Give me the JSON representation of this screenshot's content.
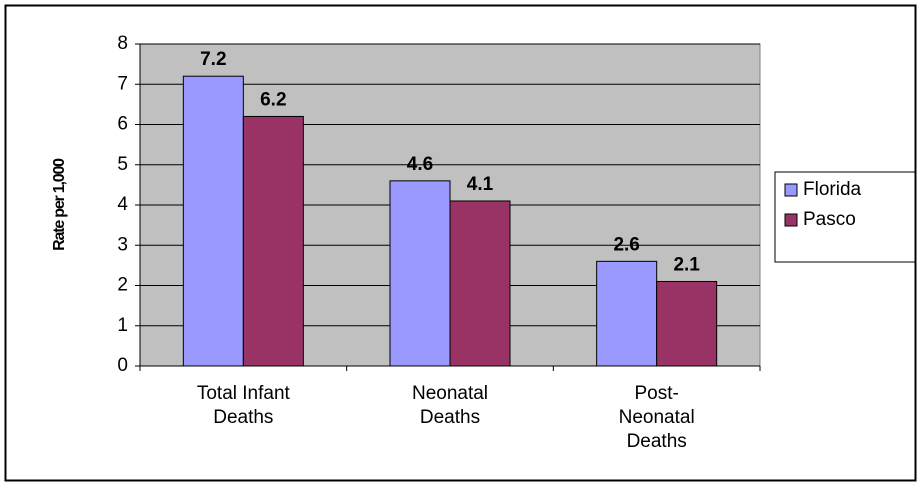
{
  "chart_data": {
    "type": "bar",
    "y_label": "Rate per 1,000",
    "categories": [
      "Total Infant\nDeaths",
      "Neonatal\nDeaths",
      "Post-\nNeonatal\nDeaths"
    ],
    "series": [
      {
        "name": "Florida",
        "color": "#9999ff",
        "values": [
          7.2,
          4.6,
          2.6
        ]
      },
      {
        "name": "Pasco",
        "color": "#993366",
        "values": [
          6.2,
          4.1,
          2.1
        ]
      }
    ],
    "ylim": [
      0,
      8
    ],
    "yticks": [
      0,
      1,
      2,
      3,
      4,
      5,
      6,
      7,
      8
    ],
    "grid": true,
    "legend": "right"
  }
}
